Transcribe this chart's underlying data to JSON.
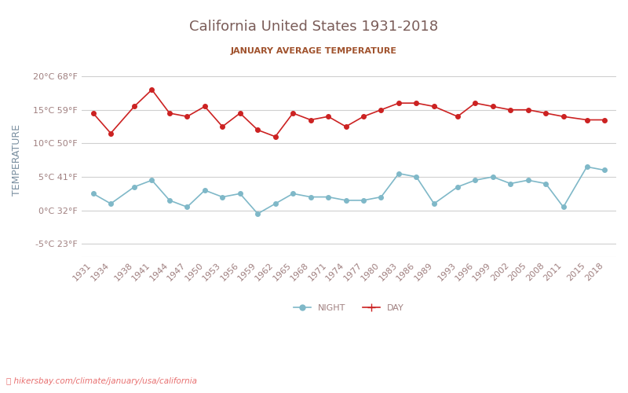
{
  "title": "California United States 1931-2018",
  "subtitle": "JANUARY AVERAGE TEMPERATURE",
  "ylabel": "TEMPERATURE",
  "watermark": "hikersbay.com/climate/january/usa/california",
  "title_color": "#7a5c58",
  "subtitle_color": "#a0522d",
  "bg_color": "#ffffff",
  "grid_color": "#d0d0d0",
  "axis_color": "#cccccc",
  "ylabel_color": "#7a8fa0",
  "tick_color": "#a08080",
  "years": [
    1931,
    1934,
    1938,
    1941,
    1944,
    1947,
    1950,
    1953,
    1956,
    1959,
    1962,
    1965,
    1968,
    1971,
    1974,
    1977,
    1980,
    1983,
    1986,
    1989,
    1993,
    1996,
    1999,
    2002,
    2005,
    2008,
    2011,
    2015,
    2018
  ],
  "day_temps": [
    14.5,
    11.5,
    15.5,
    18.0,
    14.5,
    14.0,
    15.5,
    12.5,
    14.5,
    12.0,
    11.0,
    14.5,
    13.5,
    14.0,
    12.5,
    14.0,
    15.0,
    16.0,
    16.0,
    15.5,
    14.0,
    16.0,
    15.5,
    15.0,
    15.0,
    14.5,
    14.0,
    13.5,
    13.5
  ],
  "night_temps": [
    2.5,
    1.0,
    3.5,
    4.5,
    1.5,
    0.5,
    3.0,
    2.0,
    2.5,
    -0.5,
    1.0,
    2.5,
    2.0,
    2.0,
    1.5,
    1.5,
    2.0,
    5.5,
    5.0,
    1.0,
    3.5,
    4.5,
    5.0,
    4.0,
    4.5,
    4.0,
    0.5,
    6.5,
    6.0
  ],
  "day_color": "#cc2222",
  "night_color": "#7fb8c8",
  "yticks_c": [
    -5,
    0,
    5,
    10,
    15,
    20
  ],
  "yticks_f": [
    23,
    32,
    41,
    50,
    59,
    68
  ],
  "ylim": [
    -7,
    22
  ],
  "legend_night": "NIGHT",
  "legend_day": "DAY"
}
